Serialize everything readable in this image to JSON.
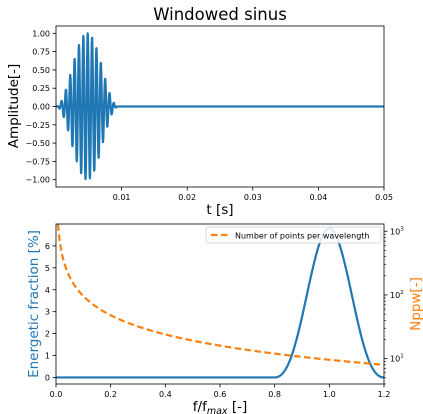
{
  "chart_data": [
    {
      "type": "line",
      "title": "Windowed sinus",
      "xlabel": "t [s]",
      "ylabel": "Amplitude[-]",
      "xlim": [
        0.0,
        0.05
      ],
      "ylim": [
        -1.1,
        1.1
      ],
      "xticks": [
        "0.01",
        "0.02",
        "0.03",
        "0.04",
        "0.05"
      ],
      "yticks": [
        "1.00",
        "0.75",
        "0.50",
        "0.25",
        "0.00",
        "−0.25",
        "−0.50",
        "−0.75",
        "−1.00"
      ],
      "grid": false,
      "series": [
        {
          "color": "#1f77b4",
          "signal": {
            "kind": "hann-windowed-sine",
            "carrier_frequency": 1500,
            "window_start": 0.0,
            "window_end": 0.0095,
            "peak_amplitude": 1.0
          }
        }
      ]
    },
    {
      "type": "line",
      "title": "",
      "xlabel": "f/f_max [-]",
      "ylabel_left": "Energetic fraction [%]",
      "ylabel_right": "Nppw[-]",
      "xlim": [
        0.0,
        1.2
      ],
      "ylim_left": [
        -0.3,
        7.0
      ],
      "ylim_right": [
        4,
        1300
      ],
      "right_scale": "log",
      "xticks": [
        "0.0",
        "0.2",
        "0.4",
        "0.6",
        "0.8",
        "1.0",
        "1.2"
      ],
      "yticks_left": [
        "0",
        "1",
        "2",
        "3",
        "4",
        "5",
        "6"
      ],
      "yticks_right": [
        {
          "base": "10",
          "exp": "1"
        },
        {
          "base": "10",
          "exp": "2"
        },
        {
          "base": "10",
          "exp": "3"
        }
      ],
      "legend_position": "upper-right",
      "colors": {
        "left_axis": "#1f77b4",
        "right_axis": "#ff7f0e"
      },
      "series": [
        {
          "axis": "left",
          "color": "#1f77b4",
          "style": "solid",
          "shape": {
            "kind": "squared-sinc",
            "center": 1.0,
            "peak": 6.8,
            "first_zeros": [
              0.8,
              1.2
            ]
          }
        },
        {
          "axis": "right",
          "name": "Number of points per wavelength",
          "color": "#ff7f0e",
          "style": "dashed",
          "shape": {
            "kind": "reciprocal",
            "value_at_x1": 9.6
          }
        }
      ]
    }
  ]
}
